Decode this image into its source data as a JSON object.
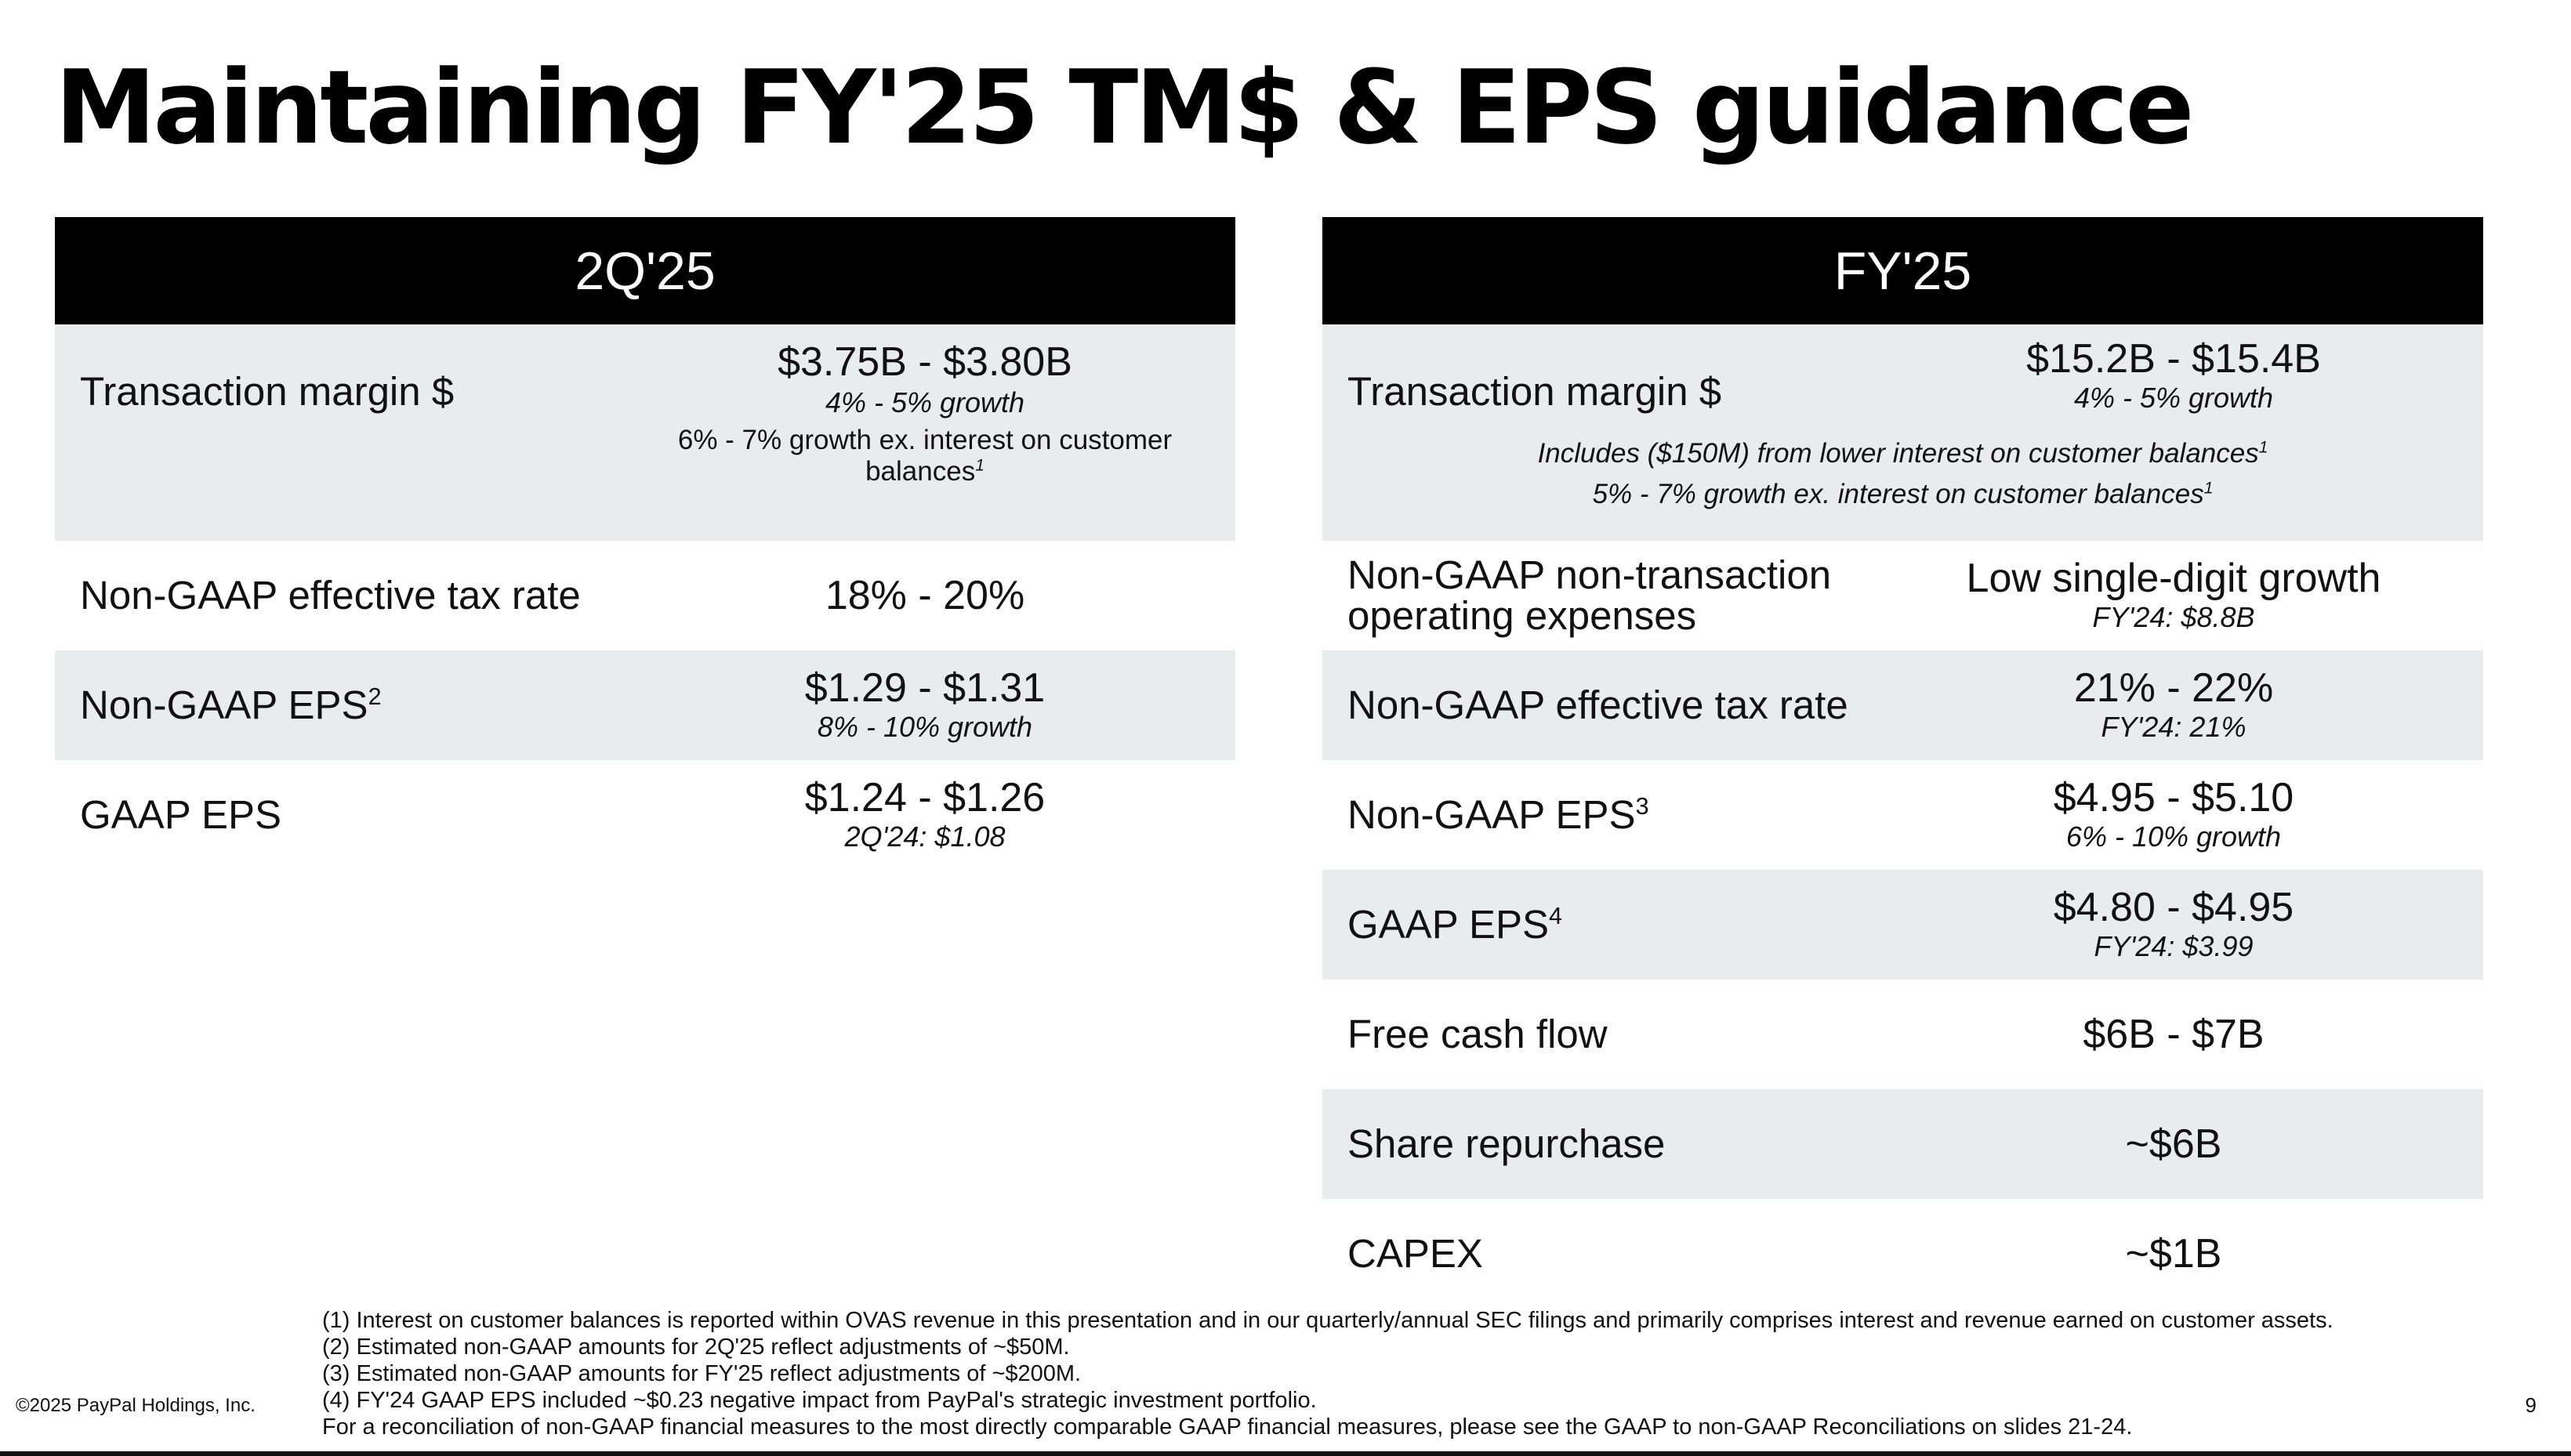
{
  "title": "Maintaining FY'25 TM$ & EPS guidance",
  "left_panel": {
    "header": "2Q'25",
    "rows": [
      {
        "label": "Transaction margin $",
        "value": "$3.75B - $3.80B",
        "sub": "4% - 5% growth",
        "note": "6% - 7% growth ex. interest on customer balances",
        "note_sup": "1"
      },
      {
        "label": "Non-GAAP effective tax rate",
        "value": "18% - 20%"
      },
      {
        "label": "Non-GAAP EPS",
        "label_sup": "2",
        "value": "$1.29 - $1.31",
        "sub": "8% - 10% growth"
      },
      {
        "label": "GAAP EPS",
        "value": "$1.24 - $1.26",
        "sub": "2Q'24: $1.08"
      }
    ]
  },
  "right_panel": {
    "header": "FY'25",
    "rows": [
      {
        "label": "Transaction margin $",
        "value": "$15.2B - $15.4B",
        "sub": "4% - 5% growth",
        "note1": "Includes ($150M) from lower interest on customer balances",
        "note1_sup": "1",
        "note2": "5% - 7% growth ex. interest on customer balances",
        "note2_sup": "1"
      },
      {
        "label_line1": "Non-GAAP non-transaction",
        "label_line2": "operating expenses",
        "value": "Low single-digit growth",
        "sub": "FY'24: $8.8B"
      },
      {
        "label": "Non-GAAP effective tax rate",
        "value": "21% - 22%",
        "sub": "FY'24: 21%"
      },
      {
        "label": "Non-GAAP EPS",
        "label_sup": "3",
        "value": "$4.95 - $5.10",
        "sub": "6% - 10% growth"
      },
      {
        "label": "GAAP EPS",
        "label_sup": "4",
        "value": "$4.80 - $4.95",
        "sub": "FY'24: $3.99"
      },
      {
        "label": "Free cash flow",
        "value": "$6B - $7B"
      },
      {
        "label": "Share repurchase",
        "value": "~$6B"
      },
      {
        "label": "CAPEX",
        "value": "~$1B"
      }
    ]
  },
  "footnotes": [
    "(1) Interest on customer balances is reported within OVAS revenue in this presentation and in our quarterly/annual SEC filings and primarily comprises interest and revenue earned on customer assets.",
    "(2) Estimated non-GAAP amounts for 2Q'25 reflect adjustments of ~$50M.",
    "(3) Estimated non-GAAP amounts for FY'25 reflect adjustments of ~$200M.",
    "(4) FY'24 GAAP EPS included ~$0.23 negative impact from PayPal's strategic investment portfolio.",
    "For a reconciliation of non-GAAP financial measures to the most directly comparable GAAP financial measures, please see the GAAP to non-GAAP Reconciliations on slides 21-24."
  ],
  "copyright": "©2025 PayPal Holdings, Inc.",
  "page_number": "9"
}
